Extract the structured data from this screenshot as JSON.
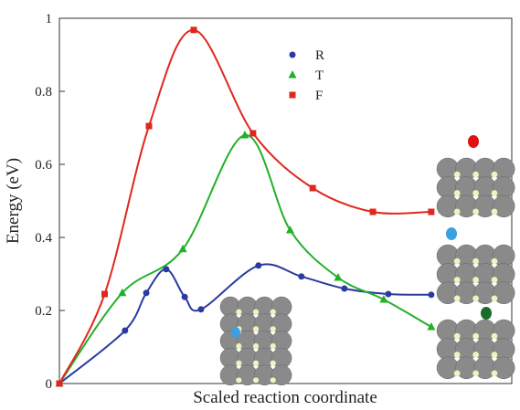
{
  "chart_data": {
    "type": "line",
    "xlabel": "Scaled reaction coordinate",
    "ylabel": "Energy (eV)",
    "xlim": [
      0,
      1
    ],
    "ylim": [
      0,
      1
    ],
    "yticks": [
      0,
      0.2,
      0.4,
      0.6,
      0.8,
      1
    ],
    "legend": "upper center",
    "series": [
      {
        "name": "R",
        "color": "#2b3aa0",
        "marker": "circle",
        "x": [
          0,
          0.145,
          0.192,
          0.236,
          0.277,
          0.313,
          0.44,
          0.535,
          0.63,
          0.727,
          0.822
        ],
        "values": [
          0,
          0.145,
          0.248,
          0.313,
          0.237,
          0.203,
          0.323,
          0.293,
          0.26,
          0.245,
          0.243
        ]
      },
      {
        "name": "T",
        "color": "#22b02a",
        "marker": "triangle",
        "x": [
          0,
          0.139,
          0.273,
          0.41,
          0.51,
          0.616,
          0.717,
          0.822
        ],
        "values": [
          0,
          0.248,
          0.368,
          0.68,
          0.42,
          0.29,
          0.23,
          0.155
        ]
      },
      {
        "name": "F",
        "color": "#e0271e",
        "marker": "square",
        "x": [
          0,
          0.1,
          0.198,
          0.297,
          0.428,
          0.56,
          0.693,
          0.822
        ],
        "values": [
          0,
          0.245,
          0.705,
          0.968,
          0.685,
          0.535,
          0.47,
          0.47
        ]
      }
    ]
  }
}
